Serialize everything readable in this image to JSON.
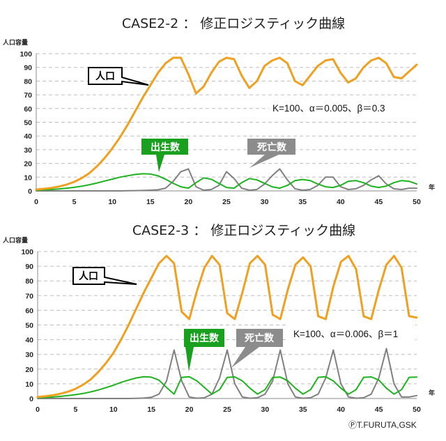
{
  "colors": {
    "population": "#f0a020",
    "births": "#1db31d",
    "deaths": "#808080",
    "grid": "#bdbdbd",
    "callout_green": "#19a01f",
    "callout_gray": "#8c8c8c"
  },
  "credit": "ⓅT.FURUTA,GSK",
  "chart_data": [
    {
      "type": "line",
      "title": "CASE2-2 ： 修正ロジスティック曲線",
      "ylabel": "人口容量",
      "xlabel": "年",
      "xlim": [
        0,
        50
      ],
      "ylim": [
        0,
        100
      ],
      "xticks": [
        "0",
        "5",
        "10",
        "15",
        "20",
        "25",
        "30",
        "35",
        "40",
        "45",
        "50"
      ],
      "yticks": [
        "0",
        "10",
        "20",
        "30",
        "40",
        "50",
        "60",
        "70",
        "80",
        "90",
        "100"
      ],
      "grid": true,
      "annotations": {
        "population": "人口",
        "births": "出生数",
        "deaths": "死亡数",
        "params": "K=100、α＝0.005、β＝0.3"
      },
      "series": [
        {
          "name": "人口",
          "x": [
            0,
            1,
            2,
            3,
            4,
            5,
            6,
            7,
            8,
            9,
            10,
            11,
            12,
            13,
            14,
            15,
            16,
            17,
            18,
            19,
            20,
            21,
            22,
            23,
            24,
            25,
            26,
            27,
            28,
            29,
            30,
            31,
            32,
            33,
            34,
            35,
            36,
            37,
            38,
            39,
            40,
            41,
            42,
            43,
            44,
            45,
            46,
            47,
            48,
            49,
            50
          ],
          "y": [
            1,
            1.5,
            2.2,
            3.2,
            4.6,
            6.6,
            9.4,
            13,
            18,
            24,
            31,
            39,
            48,
            58,
            68,
            77,
            86,
            93,
            97,
            97,
            85,
            71,
            76,
            86,
            94,
            97,
            96,
            84,
            75,
            80,
            91,
            95,
            97,
            93,
            80,
            77,
            84,
            91,
            95,
            96,
            86,
            79,
            82,
            90,
            95,
            97,
            93,
            83,
            82,
            87,
            92
          ]
        },
        {
          "name": "出生数",
          "x": [
            0,
            1,
            2,
            3,
            4,
            5,
            6,
            7,
            8,
            9,
            10,
            11,
            12,
            13,
            14,
            15,
            16,
            17,
            18,
            19,
            20,
            21,
            22,
            23,
            24,
            25,
            26,
            27,
            28,
            29,
            30,
            31,
            32,
            33,
            34,
            35,
            36,
            37,
            38,
            39,
            40,
            41,
            42,
            43,
            44,
            45,
            46,
            47,
            48,
            49,
            50
          ],
          "y": [
            0.5,
            0.7,
            1,
            1.4,
            2,
            2.6,
            3.4,
            4.5,
            5.8,
            7.2,
            8.6,
            10,
            11,
            12,
            12.5,
            12.3,
            11,
            8.5,
            5.5,
            3,
            2,
            6,
            9.5,
            8.5,
            5.5,
            2.5,
            2,
            6,
            9,
            8,
            5.5,
            3,
            2,
            4,
            7.5,
            8.3,
            7.5,
            5,
            3,
            2.5,
            4,
            7,
            7.5,
            6,
            3.5,
            2.5,
            3.5,
            6,
            7.5,
            7,
            5
          ]
        },
        {
          "name": "死亡数",
          "x": [
            0,
            1,
            2,
            3,
            4,
            5,
            6,
            7,
            8,
            9,
            10,
            11,
            12,
            13,
            14,
            15,
            16,
            17,
            18,
            19,
            20,
            21,
            22,
            23,
            24,
            25,
            26,
            27,
            28,
            29,
            30,
            31,
            32,
            33,
            34,
            35,
            36,
            37,
            38,
            39,
            40,
            41,
            42,
            43,
            44,
            45,
            46,
            47,
            48,
            49,
            50
          ],
          "y": [
            0,
            0,
            0,
            0,
            0,
            0,
            0,
            0,
            0,
            0,
            0,
            0,
            0.1,
            0.2,
            0.3,
            0.5,
            0.8,
            2,
            7,
            14,
            16,
            3,
            0.5,
            1,
            4,
            14,
            9,
            2,
            0.5,
            1,
            5,
            11,
            16,
            8,
            1.5,
            0.5,
            1,
            4,
            10,
            10,
            3,
            1,
            1.5,
            4,
            8,
            11,
            5,
            1.5,
            1,
            2,
            2
          ]
        }
      ]
    },
    {
      "type": "line",
      "title": "CASE2-3 ： 修正ロジスティック曲線",
      "ylabel": "人口容量",
      "xlabel": "年",
      "xlim": [
        0,
        50
      ],
      "ylim": [
        0,
        100
      ],
      "xticks": [
        "0",
        "5",
        "10",
        "15",
        "20",
        "25",
        "30",
        "35",
        "40",
        "45",
        "50"
      ],
      "yticks": [
        "0",
        "10",
        "20",
        "30",
        "40",
        "50",
        "60",
        "70",
        "80",
        "90",
        "100"
      ],
      "grid": true,
      "annotations": {
        "population": "人口",
        "births": "出生数",
        "deaths": "死亡数",
        "params": "K=100、α＝0.006、β＝1"
      },
      "series": [
        {
          "name": "人口",
          "x": [
            0,
            1,
            2,
            3,
            4,
            5,
            6,
            7,
            8,
            9,
            10,
            11,
            12,
            13,
            14,
            15,
            16,
            17,
            18,
            19,
            20,
            21,
            22,
            23,
            24,
            25,
            26,
            27,
            28,
            29,
            30,
            31,
            32,
            33,
            34,
            35,
            36,
            37,
            38,
            39,
            40,
            41,
            42,
            43,
            44,
            45,
            46,
            47,
            48,
            49,
            50
          ],
          "y": [
            1,
            1.5,
            2.2,
            3.2,
            4.6,
            6.6,
            9.4,
            13,
            18,
            24,
            31,
            40,
            50,
            61,
            72,
            82,
            92,
            97,
            92,
            59,
            54,
            73,
            89,
            97,
            91,
            58,
            54,
            72,
            92,
            97,
            91,
            57,
            54,
            74,
            91,
            96,
            90,
            56,
            54,
            76,
            93,
            97,
            88,
            56,
            54,
            74,
            91,
            97,
            89,
            56,
            55
          ]
        },
        {
          "name": "出生数",
          "x": [
            0,
            1,
            2,
            3,
            4,
            5,
            6,
            7,
            8,
            9,
            10,
            11,
            12,
            13,
            14,
            15,
            16,
            17,
            18,
            19,
            20,
            21,
            22,
            23,
            24,
            25,
            26,
            27,
            28,
            29,
            30,
            31,
            32,
            33,
            34,
            35,
            36,
            37,
            38,
            39,
            40,
            41,
            42,
            43,
            44,
            45,
            46,
            47,
            48,
            49,
            50
          ],
          "y": [
            0.5,
            0.7,
            1,
            1.4,
            2,
            2.6,
            3.4,
            4.5,
            5.8,
            7.4,
            9,
            11,
            12.5,
            14,
            14.8,
            14.5,
            12.5,
            7.5,
            3,
            14.3,
            14.8,
            12,
            7.5,
            3,
            6,
            14.3,
            14.7,
            12,
            7,
            3,
            6,
            14.3,
            14.6,
            12,
            7,
            3,
            6,
            14.4,
            14.8,
            12,
            7,
            3,
            6,
            14.4,
            14.7,
            12.5,
            7,
            3,
            6,
            14.4,
            14.6
          ]
        },
        {
          "name": "死亡数",
          "x": [
            0,
            1,
            2,
            3,
            4,
            5,
            6,
            7,
            8,
            9,
            10,
            11,
            12,
            13,
            14,
            15,
            16,
            17,
            18,
            19,
            20,
            21,
            22,
            23,
            24,
            25,
            26,
            27,
            28,
            29,
            30,
            31,
            32,
            33,
            34,
            35,
            36,
            37,
            38,
            39,
            40,
            41,
            42,
            43,
            44,
            45,
            46,
            47,
            48,
            49,
            50
          ],
          "y": [
            0,
            0,
            0,
            0,
            0,
            0,
            0,
            0,
            0,
            0,
            0,
            0,
            0,
            0.1,
            0.3,
            0.8,
            3,
            12,
            33,
            12,
            1,
            0.2,
            0.5,
            3,
            14,
            33,
            10,
            1,
            0.2,
            0.5,
            3,
            12,
            33,
            10,
            1,
            0.2,
            0.5,
            3,
            14,
            33,
            10,
            1,
            0.2,
            0.5,
            3,
            14,
            34,
            10,
            1,
            1,
            2
          ]
        }
      ]
    }
  ]
}
